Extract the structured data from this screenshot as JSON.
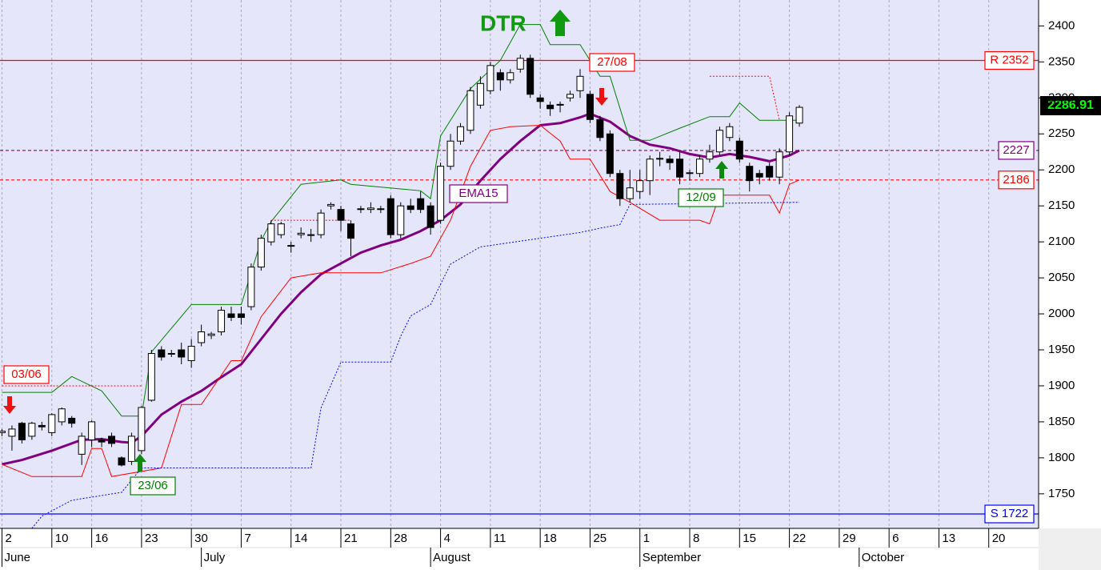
{
  "chart_data": {
    "type": "candlestick",
    "x": [
      0,
      1,
      2,
      3,
      4,
      5,
      6,
      7,
      8,
      9,
      10,
      11,
      12,
      13,
      14,
      15,
      16,
      17,
      18,
      19,
      20,
      21,
      22,
      23,
      24,
      25,
      26,
      27,
      28,
      29,
      30,
      31,
      32,
      33,
      34,
      35,
      36,
      37,
      38,
      39,
      40,
      41,
      42,
      43,
      44,
      45,
      46,
      47,
      48,
      49,
      50,
      51,
      52,
      53,
      54,
      55,
      56,
      57,
      58,
      59,
      60,
      61,
      62,
      63,
      64,
      65,
      66,
      67,
      68,
      69,
      70,
      71,
      72,
      73,
      74,
      75,
      76,
      77,
      78,
      79,
      80
    ],
    "open": [
      1835,
      1830,
      1848,
      1830,
      1845,
      1835,
      1850,
      1855,
      1805,
      1825,
      1825,
      1830,
      1800,
      1795,
      1810,
      1880,
      1950,
      1945,
      1950,
      1935,
      1960,
      1970,
      1975,
      2000,
      2000,
      2010,
      2065,
      2100,
      2110,
      2095,
      2110,
      2110,
      2110,
      2150,
      2145,
      2125,
      2145,
      2145,
      2145,
      2160,
      2110,
      2150,
      2160,
      2150,
      2130,
      2205,
      2240,
      2255,
      2290,
      2310,
      2335,
      2325,
      2340,
      2355,
      2300,
      2290,
      2290,
      2300,
      2310,
      2305,
      2270,
      2250,
      2195,
      2160,
      2170,
      2185,
      2215,
      2215,
      2215,
      2195,
      2195,
      2215,
      2225,
      2245,
      2240,
      2205,
      2195,
      2205,
      2190,
      2225,
      2265
    ],
    "high": [
      1840,
      1845,
      1850,
      1850,
      1850,
      1862,
      1870,
      1858,
      1835,
      1852,
      1828,
      1835,
      1802,
      1835,
      1872,
      1950,
      1955,
      1950,
      1960,
      1965,
      1985,
      1975,
      2010,
      2010,
      2010,
      2070,
      2110,
      2130,
      2128,
      2100,
      2120,
      2118,
      2145,
      2155,
      2150,
      2130,
      2150,
      2155,
      2150,
      2165,
      2155,
      2160,
      2170,
      2155,
      2210,
      2250,
      2265,
      2315,
      2330,
      2350,
      2340,
      2340,
      2360,
      2360,
      2305,
      2295,
      2295,
      2310,
      2340,
      2310,
      2275,
      2255,
      2200,
      2200,
      2200,
      2220,
      2225,
      2220,
      2225,
      2200,
      2220,
      2235,
      2260,
      2265,
      2245,
      2210,
      2200,
      2210,
      2230,
      2280,
      2290
    ],
    "low": [
      1830,
      1810,
      1820,
      1825,
      1838,
      1830,
      1845,
      1842,
      1790,
      1815,
      1815,
      1815,
      1788,
      1790,
      1805,
      1878,
      1935,
      1940,
      1930,
      1925,
      1955,
      1965,
      1970,
      1990,
      1985,
      2005,
      2060,
      2095,
      2105,
      2085,
      2105,
      2100,
      2105,
      2145,
      2115,
      2080,
      2140,
      2140,
      2140,
      2105,
      2105,
      2140,
      2140,
      2110,
      2125,
      2200,
      2235,
      2250,
      2285,
      2305,
      2310,
      2320,
      2335,
      2300,
      2285,
      2275,
      2280,
      2295,
      2300,
      2265,
      2240,
      2190,
      2150,
      2155,
      2160,
      2165,
      2205,
      2200,
      2180,
      2185,
      2190,
      2210,
      2220,
      2240,
      2210,
      2170,
      2180,
      2185,
      2180,
      2220,
      2260
    ],
    "close": [
      1837,
      1840,
      1825,
      1848,
      1843,
      1860,
      1868,
      1848,
      1830,
      1850,
      1822,
      1820,
      1790,
      1830,
      1870,
      1945,
      1940,
      1945,
      1940,
      1955,
      1975,
      1972,
      2005,
      1995,
      1995,
      2065,
      2105,
      2125,
      2125,
      2095,
      2112,
      2110,
      2140,
      2152,
      2130,
      2105,
      2146,
      2147,
      2146,
      2110,
      2150,
      2145,
      2145,
      2120,
      2205,
      2240,
      2260,
      2310,
      2320,
      2345,
      2325,
      2335,
      2355,
      2305,
      2295,
      2285,
      2291,
      2305,
      2330,
      2270,
      2245,
      2195,
      2160,
      2175,
      2185,
      2215,
      2216,
      2210,
      2190,
      2196,
      2215,
      2225,
      2255,
      2260,
      2215,
      2185,
      2190,
      2190,
      2225,
      2275,
      2286.91
    ],
    "up_color": "#ffffff",
    "down_color": "#000000",
    "lines": [
      {
        "name": "EMA15",
        "color": "#800080",
        "width": 3,
        "dashed": false,
        "x": [
          0,
          2,
          5,
          8,
          10,
          12,
          13,
          14,
          16,
          18,
          20,
          22,
          24,
          26,
          28,
          30,
          32,
          34,
          36,
          38,
          40,
          42,
          44,
          46,
          48,
          50,
          52,
          54,
          56,
          58,
          59,
          61,
          63,
          65,
          67,
          69,
          71,
          73,
          75,
          77,
          79,
          80
        ],
        "values": [
          1791,
          1797,
          1810,
          1825,
          1826,
          1822,
          1821,
          1830,
          1860,
          1878,
          1893,
          1912,
          1930,
          1965,
          2000,
          2030,
          2055,
          2070,
          2085,
          2095,
          2103,
          2115,
          2130,
          2152,
          2185,
          2215,
          2240,
          2262,
          2265,
          2273,
          2278,
          2267,
          2247,
          2235,
          2230,
          2222,
          2217,
          2222,
          2218,
          2212,
          2220,
          2227
        ]
      },
      {
        "color": "#008000",
        "width": 1,
        "dashed": false,
        "x": [
          0,
          5,
          7,
          10,
          12,
          14,
          15,
          19,
          24,
          26,
          27,
          30,
          34,
          35,
          42,
          43,
          44,
          47,
          50,
          52,
          54,
          55,
          58,
          60,
          61,
          63,
          65,
          68,
          71,
          73,
          74,
          76,
          80
        ],
        "values": [
          1891,
          1891,
          1913,
          1893,
          1858,
          1858,
          1947,
          2013,
          2013,
          2102,
          2128,
          2180,
          2186,
          2180,
          2171,
          2160,
          2247,
          2313,
          2352,
          2402,
          2402,
          2374,
          2374,
          2330,
          2330,
          2241,
          2241,
          2258,
          2274,
          2274,
          2293,
          2269,
          2269
        ]
      },
      {
        "color": "#ff0000",
        "width": 1,
        "dashed": false,
        "x": [
          0,
          3,
          8,
          9,
          10,
          11,
          16,
          18,
          20,
          23,
          24,
          26,
          29,
          32,
          38,
          41,
          43,
          45,
          47,
          49,
          51,
          54,
          56,
          57,
          59,
          61,
          63,
          66,
          70,
          71,
          72,
          77,
          78,
          79,
          80
        ],
        "values": [
          1791,
          1774,
          1774,
          1813,
          1813,
          1774,
          1786,
          1874,
          1874,
          1935,
          1935,
          1996,
          2050,
          2057,
          2057,
          2070,
          2080,
          2130,
          2205,
          2255,
          2260,
          2262,
          2240,
          2215,
          2215,
          2170,
          2155,
          2130,
          2130,
          2125,
          2165,
          2165,
          2140,
          2180,
          2186
        ]
      },
      {
        "color": "#ff0000",
        "width": 1,
        "dashed": true,
        "x": [
          0,
          14,
          15,
          27,
          35,
          36,
          71,
          77,
          78
        ],
        "values": [
          1900,
          1900,
          null,
          2130,
          2130,
          null,
          2330,
          2330,
          2269
        ]
      },
      {
        "color": "#0000ff",
        "width": 1,
        "dashed": true,
        "x": [
          3,
          4,
          7,
          12,
          14,
          31,
          32,
          34,
          39,
          40,
          41,
          43,
          45,
          48,
          58,
          60,
          62,
          63,
          80
        ],
        "values": [
          1702,
          1719,
          1741,
          1752,
          1786,
          1786,
          1869,
          1933,
          1933,
          1969,
          1997,
          2013,
          2069,
          2093,
          2113,
          2119,
          2124,
          2152,
          2155
        ]
      }
    ],
    "levels": [
      {
        "value": 2352,
        "label": "R 2352",
        "color": "#ff0000",
        "dashed": false
      },
      {
        "value": 2227,
        "label": "2227",
        "color": "#800080",
        "dashed": true
      },
      {
        "value": 2186,
        "label": "2186",
        "color": "#ff0000",
        "dashed": true
      },
      {
        "value": 1722,
        "label": "S 1722",
        "color": "#0000ff",
        "dashed": false
      }
    ],
    "signals": [
      "03/06",
      "23/06",
      "27/08",
      "12/09"
    ],
    "signal_text": "DTR",
    "xlim": [
      -0.2,
      104
    ],
    "ylim": [
      1702,
      2436
    ],
    "yticks": [
      1750,
      1800,
      1850,
      1900,
      1950,
      2000,
      2050,
      2100,
      2150,
      2200,
      2250,
      2300,
      2350,
      2400
    ],
    "xticks": [
      {
        "value": 0,
        "label": "2"
      },
      {
        "value": 5,
        "label": "10"
      },
      {
        "value": 9,
        "label": "16"
      },
      {
        "value": 14,
        "label": "23"
      },
      {
        "value": 19,
        "label": "30"
      },
      {
        "value": 24,
        "label": "7"
      },
      {
        "value": 29,
        "label": "14"
      },
      {
        "value": 34,
        "label": "21"
      },
      {
        "value": 39,
        "label": "28"
      },
      {
        "value": 44,
        "label": "4"
      },
      {
        "value": 49,
        "label": "11"
      },
      {
        "value": 54,
        "label": "18"
      },
      {
        "value": 59,
        "label": "25"
      },
      {
        "value": 64,
        "label": "1"
      },
      {
        "value": 69,
        "label": "8"
      },
      {
        "value": 74,
        "label": "15"
      },
      {
        "value": 79,
        "label": "22"
      },
      {
        "value": 84,
        "label": "29"
      },
      {
        "value": 89,
        "label": "6"
      },
      {
        "value": 94,
        "label": "13"
      },
      {
        "value": 99,
        "label": "20"
      }
    ],
    "month_ticks": [
      {
        "value": 0,
        "label": "June"
      },
      {
        "value": 20,
        "label": "July"
      },
      {
        "value": 43,
        "label": "August"
      },
      {
        "value": 64,
        "label": "September"
      },
      {
        "value": 86,
        "label": "October"
      }
    ],
    "grid": true
  }
}
